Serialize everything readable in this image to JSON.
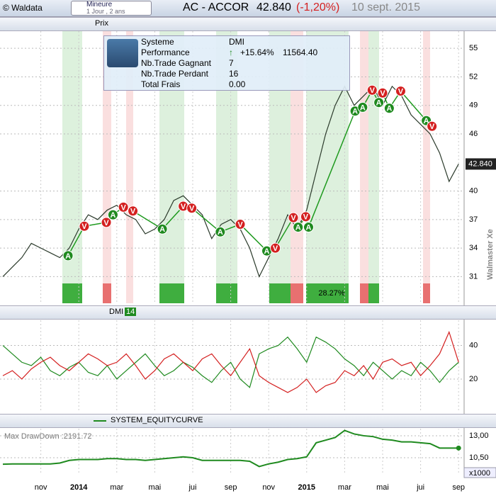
{
  "header": {
    "copyright": "© Waldata",
    "trend": "Mineure",
    "period": "1 Jour , 2 ans",
    "symbol": "AC - ACCOR",
    "price": "42.840",
    "change": "(-1,20%)",
    "date": "10 sept. 2015"
  },
  "toolbar": {
    "label": "Prix"
  },
  "info_panel": {
    "rows": [
      [
        "Systeme",
        "DMI"
      ],
      [
        "Performance",
        "+15.64%",
        "11564.40"
      ],
      [
        "Nb.Trade Gagnant",
        "7"
      ],
      [
        "Nb.Trade Perdant",
        "16"
      ],
      [
        "Total Frais",
        "0.00"
      ]
    ]
  },
  "watermark": "Walmaster Xe",
  "strip_label": "28.27%",
  "chart_data": [
    {
      "type": "line",
      "color": "#2b3a2b",
      "categories": [
        null,
        null,
        null,
        null,
        "nov",
        null,
        null,
        null,
        "2014",
        null,
        null,
        null,
        "mar",
        null,
        null,
        null,
        "mai",
        null,
        null,
        null,
        "jui",
        null,
        null,
        null,
        "sep",
        null,
        null,
        null,
        "nov",
        null,
        null,
        null,
        "2015",
        null,
        null,
        null,
        "mar",
        null,
        null,
        null,
        "mai",
        null,
        null,
        null,
        "jui",
        null,
        null,
        null,
        "sep"
      ],
      "values": [
        31,
        32,
        33,
        34.5,
        34,
        33.5,
        33,
        34,
        36,
        37.5,
        37,
        38,
        38.5,
        37.5,
        37,
        35.5,
        36,
        37,
        39,
        39.5,
        38.5,
        37.5,
        35,
        36.5,
        37,
        36,
        34,
        31,
        33,
        35,
        37.5,
        36,
        38,
        42,
        46,
        49,
        51,
        49,
        50,
        51,
        49,
        51,
        50,
        48,
        47,
        46,
        44,
        41,
        42.84
      ],
      "ylim": [
        28.2,
        56.8
      ],
      "yticks": [
        31,
        34,
        37,
        40,
        46,
        49,
        52,
        55
      ],
      "grid": true,
      "signals": [
        {
          "label": "A",
          "x": 6.87,
          "value": 33.2
        },
        {
          "label": "V",
          "x": 8.58,
          "value": 36.3
        },
        {
          "label": "V",
          "x": 10.9,
          "value": 36.7
        },
        {
          "label": "A",
          "x": 11.6,
          "value": 37.5
        },
        {
          "label": "V",
          "x": 12.7,
          "value": 38.3
        },
        {
          "label": "V",
          "x": 13.7,
          "value": 37.9
        },
        {
          "label": "A",
          "x": 16.8,
          "value": 36.0
        },
        {
          "label": "V",
          "x": 19.0,
          "value": 38.4
        },
        {
          "label": "V",
          "x": 19.9,
          "value": 38.2
        },
        {
          "label": "A",
          "x": 22.9,
          "value": 35.7
        },
        {
          "label": "V",
          "x": 25.0,
          "value": 36.5
        },
        {
          "label": "A",
          "x": 27.8,
          "value": 33.7
        },
        {
          "label": "V",
          "x": 28.7,
          "value": 34.0
        },
        {
          "label": "V",
          "x": 30.6,
          "value": 37.2
        },
        {
          "label": "A",
          "x": 31.1,
          "value": 36.2
        },
        {
          "label": "V",
          "x": 31.9,
          "value": 37.3
        },
        {
          "label": "A",
          "x": 32.2,
          "value": 36.2
        },
        {
          "label": "A",
          "x": 37.1,
          "value": 48.4
        },
        {
          "label": "A",
          "x": 37.9,
          "value": 48.8
        },
        {
          "label": "V",
          "x": 38.9,
          "value": 50.6
        },
        {
          "label": "A",
          "x": 39.6,
          "value": 49.3
        },
        {
          "label": "V",
          "x": 40.0,
          "value": 50.3
        },
        {
          "label": "A",
          "x": 40.7,
          "value": 48.7
        },
        {
          "label": "V",
          "x": 41.9,
          "value": 50.5
        },
        {
          "label": "A",
          "x": 44.6,
          "value": 47.4
        },
        {
          "label": "V",
          "x": 45.2,
          "value": 46.8
        }
      ]
    },
    {
      "type": "line",
      "legend": "DMI",
      "period": 14,
      "ylim": [
        1,
        55
      ],
      "yticks": [
        20,
        40
      ],
      "grid": true,
      "series": [
        {
          "color": "#1f8a1f",
          "values": [
            40,
            35,
            30,
            28,
            33,
            25,
            22,
            27,
            30,
            24,
            22,
            28,
            20,
            25,
            30,
            35,
            28,
            22,
            25,
            30,
            27,
            22,
            18,
            25,
            30,
            20,
            15,
            35,
            38,
            40,
            45,
            38,
            30,
            45,
            42,
            38,
            32,
            28,
            22,
            30,
            25,
            20,
            25,
            22,
            30,
            25,
            18,
            25,
            30
          ]
        },
        {
          "color": "#d42020",
          "values": [
            22,
            25,
            20,
            26,
            30,
            33,
            28,
            25,
            30,
            35,
            32,
            28,
            30,
            35,
            28,
            20,
            25,
            32,
            35,
            30,
            25,
            32,
            35,
            28,
            22,
            30,
            38,
            22,
            18,
            15,
            12,
            15,
            20,
            12,
            16,
            18,
            25,
            22,
            28,
            20,
            30,
            32,
            28,
            30,
            22,
            28,
            35,
            48,
            30
          ]
        }
      ]
    },
    {
      "type": "line",
      "subtitle": "Max DrawDown :2191.72",
      "scale_label": "x1000",
      "ylim": [
        8.73,
        13.8
      ],
      "yticks": [
        {
          "value": 10.5,
          "label": "10,50"
        },
        {
          "value": 13,
          "label": "13,00"
        }
      ],
      "grid": true,
      "series": [
        {
          "name": "SYSTEM_EQUITYCURVE",
          "color": "#1f8a1f",
          "values": [
            9.77,
            9.8,
            9.8,
            9.8,
            9.8,
            9.8,
            9.9,
            10.2,
            10.3,
            10.3,
            10.3,
            10.4,
            10.4,
            10.3,
            10.3,
            10.2,
            10.3,
            10.4,
            10.5,
            10.6,
            10.5,
            10.2,
            10.2,
            10.2,
            10.2,
            10.2,
            10.1,
            9.5,
            9.8,
            10.0,
            10.3,
            10.4,
            10.6,
            12.2,
            12.5,
            12.8,
            13.6,
            13.2,
            13.0,
            12.9,
            12.6,
            12.5,
            12.3,
            12.3,
            12.2,
            12.1,
            11.6,
            11.6,
            11.6
          ]
        }
      ]
    }
  ]
}
